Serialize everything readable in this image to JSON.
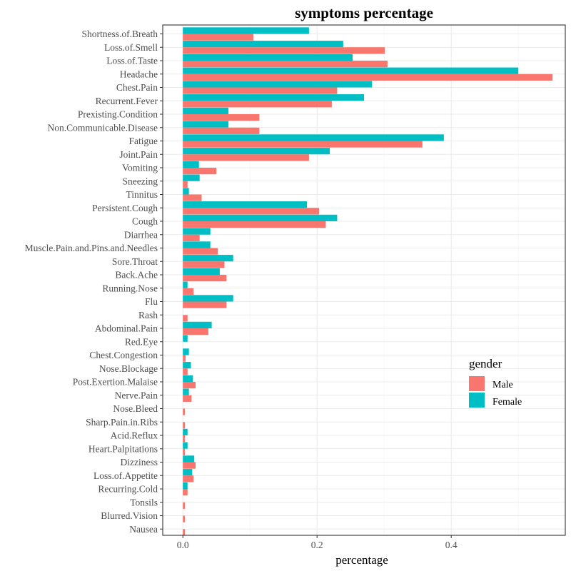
{
  "chart_data": {
    "type": "bar",
    "orientation": "horizontal",
    "title": "symptoms percentage",
    "xlabel": "percentage",
    "ylabel": "",
    "xlim": [
      -0.03,
      0.57
    ],
    "xticks": [
      0.0,
      0.2,
      0.4
    ],
    "xtick_labels": [
      "0.0",
      "0.2",
      "0.4"
    ],
    "grid": true,
    "legend": {
      "title": "gender",
      "placement": "right"
    },
    "categories": [
      "Shortness.of.Breath",
      "Loss.of.Smell",
      "Loss.of.Taste",
      "Headache",
      "Chest.Pain",
      "Recurrent.Fever",
      "Prexisting.Condition",
      "Non.Communicable.Disease",
      "Fatigue",
      "Joint.Pain",
      "Vomiting",
      "Sneezing",
      "Tinnitus",
      "Persistent.Cough",
      "Cough",
      "Diarrhea",
      "Muscle.Pain.and.Pins.and.Needles",
      "Sore.Throat",
      "Back.Ache",
      "Running.Nose",
      "Flu",
      "Rash",
      "Abdominal.Pain",
      "Red.Eye",
      "Chest.Congestion",
      "Nose.Blockage",
      "Post.Exertion.Malaise",
      "Nerve.Pain",
      "Nose.Bleed",
      "Sharp.Pain.in.Ribs",
      "Acid.Reflux",
      "Heart.Palpitations",
      "Dizziness",
      "Loss.of.Appetite",
      "Recurring.Cold",
      "Tonsils",
      "Blurred.Vision",
      "Nausea"
    ],
    "series": [
      {
        "name": "Male",
        "color": "#F8766D",
        "values": [
          0.105,
          0.301,
          0.305,
          0.551,
          0.23,
          0.222,
          0.114,
          0.114,
          0.357,
          0.188,
          0.05,
          0.007,
          0.028,
          0.203,
          0.213,
          0.025,
          0.052,
          0.062,
          0.065,
          0.016,
          0.065,
          0.007,
          0.038,
          0.0,
          0.004,
          0.007,
          0.019,
          0.013,
          0.003,
          0.003,
          0.003,
          0.003,
          0.019,
          0.016,
          0.007,
          0.003,
          0.003,
          0.003
        ]
      },
      {
        "name": "Female",
        "color": "#00BFC4",
        "values": [
          0.188,
          0.239,
          0.253,
          0.5,
          0.282,
          0.27,
          0.068,
          0.068,
          0.389,
          0.219,
          0.024,
          0.025,
          0.009,
          0.185,
          0.23,
          0.041,
          0.041,
          0.075,
          0.055,
          0.007,
          0.075,
          0.0,
          0.043,
          0.007,
          0.009,
          0.012,
          0.015,
          0.009,
          0.0,
          0.0,
          0.007,
          0.007,
          0.017,
          0.014,
          0.007,
          0.0,
          0.0,
          0.0
        ]
      }
    ]
  }
}
